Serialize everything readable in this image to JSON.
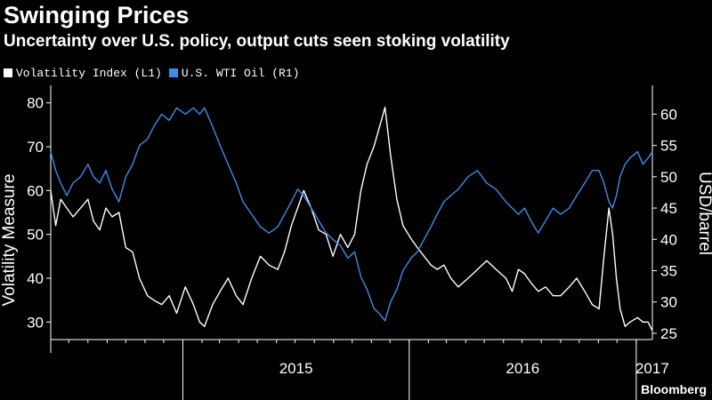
{
  "header": {
    "title": "Swinging Prices",
    "subtitle": "Uncertainty over U.S. policy, output cuts seen stoking volatility"
  },
  "credit": "Bloomberg",
  "chart_data": {
    "type": "line",
    "title": "Swinging Prices",
    "subtitle": "Uncertainty over U.S. policy, output cuts seen stoking volatility",
    "ylabel_left": "Volatility Measure",
    "ylabel_right": "USD/barrel",
    "ylim_left": [
      26,
      84
    ],
    "ylim_right": [
      24,
      64.6
    ],
    "yticks_left": [
      30,
      40,
      50,
      60,
      70,
      80
    ],
    "yticks_right": [
      25,
      30,
      35,
      40,
      45,
      50,
      55,
      60
    ],
    "x_domain": [
      "2014-06-02",
      "2017-01-27"
    ],
    "x_ticks": [
      {
        "label": "2015",
        "date": "2015-01-01"
      },
      {
        "label": "2016",
        "date": "2016-01-01"
      },
      {
        "label": "2017",
        "date": "2017-01-01"
      }
    ],
    "grid": false,
    "legend_position": "top-left",
    "colors": {
      "background": "#000000",
      "vol": "#ffffff",
      "oil": "#3b8ee8",
      "axis": "#ffffff"
    },
    "series": [
      {
        "name": "Volatility Index (L1)",
        "axis": "left",
        "color": "#ffffff",
        "data": [
          [
            "2014-06-02",
            60
          ],
          [
            "2014-06-10",
            52
          ],
          [
            "2014-06-18",
            58
          ],
          [
            "2014-06-28",
            56
          ],
          [
            "2014-07-08",
            54
          ],
          [
            "2014-07-20",
            56
          ],
          [
            "2014-08-01",
            58
          ],
          [
            "2014-08-10",
            53
          ],
          [
            "2014-08-20",
            51
          ],
          [
            "2014-08-30",
            56
          ],
          [
            "2014-09-09",
            54
          ],
          [
            "2014-09-20",
            55
          ],
          [
            "2014-10-01",
            47
          ],
          [
            "2014-10-12",
            46
          ],
          [
            "2014-10-23",
            40
          ],
          [
            "2014-11-05",
            36
          ],
          [
            "2014-11-15",
            35
          ],
          [
            "2014-11-28",
            34
          ],
          [
            "2014-12-10",
            36
          ],
          [
            "2014-12-22",
            32
          ],
          [
            "2015-01-05",
            38
          ],
          [
            "2015-01-18",
            34
          ],
          [
            "2015-01-28",
            30
          ],
          [
            "2015-02-05",
            29
          ],
          [
            "2015-02-18",
            34
          ],
          [
            "2015-03-02",
            37
          ],
          [
            "2015-03-15",
            40
          ],
          [
            "2015-03-28",
            36
          ],
          [
            "2015-04-08",
            34
          ],
          [
            "2015-04-22",
            40
          ],
          [
            "2015-05-06",
            45
          ],
          [
            "2015-05-20",
            43
          ],
          [
            "2015-06-03",
            42
          ],
          [
            "2015-06-14",
            46
          ],
          [
            "2015-06-25",
            52
          ],
          [
            "2015-07-05",
            56
          ],
          [
            "2015-07-15",
            60
          ],
          [
            "2015-07-27",
            56
          ],
          [
            "2015-08-08",
            51
          ],
          [
            "2015-08-20",
            50
          ],
          [
            "2015-08-31",
            45
          ],
          [
            "2015-09-12",
            50
          ],
          [
            "2015-09-24",
            47
          ],
          [
            "2015-10-05",
            50
          ],
          [
            "2015-10-15",
            60
          ],
          [
            "2015-10-25",
            66
          ],
          [
            "2015-11-05",
            70
          ],
          [
            "2015-11-15",
            75
          ],
          [
            "2015-11-23",
            79
          ],
          [
            "2015-12-02",
            68
          ],
          [
            "2015-12-12",
            58
          ],
          [
            "2015-12-22",
            52
          ],
          [
            "2016-01-04",
            49
          ],
          [
            "2016-01-14",
            47
          ],
          [
            "2016-01-25",
            45
          ],
          [
            "2016-02-05",
            43
          ],
          [
            "2016-02-15",
            42
          ],
          [
            "2016-02-26",
            43
          ],
          [
            "2016-03-08",
            40
          ],
          [
            "2016-03-20",
            38
          ],
          [
            "2016-04-05",
            40
          ],
          [
            "2016-04-20",
            42
          ],
          [
            "2016-05-05",
            44
          ],
          [
            "2016-05-20",
            42
          ],
          [
            "2016-06-05",
            40
          ],
          [
            "2016-06-15",
            37
          ],
          [
            "2016-06-25",
            42
          ],
          [
            "2016-07-05",
            41
          ],
          [
            "2016-07-15",
            39
          ],
          [
            "2016-07-27",
            37
          ],
          [
            "2016-08-08",
            38
          ],
          [
            "2016-08-20",
            36
          ],
          [
            "2016-09-01",
            36
          ],
          [
            "2016-09-15",
            38
          ],
          [
            "2016-09-27",
            40
          ],
          [
            "2016-10-10",
            37
          ],
          [
            "2016-10-22",
            34
          ],
          [
            "2016-11-02",
            33
          ],
          [
            "2016-11-10",
            45
          ],
          [
            "2016-11-18",
            56
          ],
          [
            "2016-11-24",
            50
          ],
          [
            "2016-11-30",
            40
          ],
          [
            "2016-12-06",
            33
          ],
          [
            "2016-12-14",
            29
          ],
          [
            "2016-12-22",
            30
          ],
          [
            "2017-01-03",
            31
          ],
          [
            "2017-01-12",
            30
          ],
          [
            "2017-01-20",
            30
          ],
          [
            "2017-01-27",
            28
          ]
        ]
      },
      {
        "name": "U.S. WTI Oil (R1)",
        "axis": "right",
        "color": "#3b8ee8",
        "data": [
          [
            "2014-06-02",
            54
          ],
          [
            "2014-06-10",
            51
          ],
          [
            "2014-06-18",
            49
          ],
          [
            "2014-06-28",
            47
          ],
          [
            "2014-07-08",
            49
          ],
          [
            "2014-07-20",
            50
          ],
          [
            "2014-08-01",
            52
          ],
          [
            "2014-08-10",
            50
          ],
          [
            "2014-08-20",
            49
          ],
          [
            "2014-08-30",
            51
          ],
          [
            "2014-09-09",
            48
          ],
          [
            "2014-09-20",
            46
          ],
          [
            "2014-10-01",
            50
          ],
          [
            "2014-10-12",
            52
          ],
          [
            "2014-10-23",
            55
          ],
          [
            "2014-11-05",
            56
          ],
          [
            "2014-11-15",
            58
          ],
          [
            "2014-11-28",
            60
          ],
          [
            "2014-12-10",
            59
          ],
          [
            "2014-12-22",
            61
          ],
          [
            "2015-01-05",
            60
          ],
          [
            "2015-01-18",
            61
          ],
          [
            "2015-01-28",
            60
          ],
          [
            "2015-02-05",
            61
          ],
          [
            "2015-02-18",
            58
          ],
          [
            "2015-03-02",
            55
          ],
          [
            "2015-03-15",
            52
          ],
          [
            "2015-03-28",
            49
          ],
          [
            "2015-04-08",
            46
          ],
          [
            "2015-04-22",
            44
          ],
          [
            "2015-05-06",
            42
          ],
          [
            "2015-05-20",
            41
          ],
          [
            "2015-06-03",
            42
          ],
          [
            "2015-06-14",
            44
          ],
          [
            "2015-06-25",
            46
          ],
          [
            "2015-07-05",
            48
          ],
          [
            "2015-07-15",
            47
          ],
          [
            "2015-07-27",
            45
          ],
          [
            "2015-08-08",
            43
          ],
          [
            "2015-08-20",
            41
          ],
          [
            "2015-08-31",
            40
          ],
          [
            "2015-09-12",
            39
          ],
          [
            "2015-09-24",
            37
          ],
          [
            "2015-10-05",
            38
          ],
          [
            "2015-10-15",
            34
          ],
          [
            "2015-10-25",
            32
          ],
          [
            "2015-11-05",
            29
          ],
          [
            "2015-11-15",
            28
          ],
          [
            "2015-11-23",
            27
          ],
          [
            "2015-12-02",
            30
          ],
          [
            "2015-12-12",
            32
          ],
          [
            "2015-12-22",
            35
          ],
          [
            "2016-01-04",
            37
          ],
          [
            "2016-01-14",
            38
          ],
          [
            "2016-01-25",
            40
          ],
          [
            "2016-02-05",
            42
          ],
          [
            "2016-02-15",
            44
          ],
          [
            "2016-02-26",
            46
          ],
          [
            "2016-03-08",
            47
          ],
          [
            "2016-03-20",
            48
          ],
          [
            "2016-04-05",
            50
          ],
          [
            "2016-04-20",
            51
          ],
          [
            "2016-05-05",
            49
          ],
          [
            "2016-05-20",
            48
          ],
          [
            "2016-06-05",
            46
          ],
          [
            "2016-06-15",
            45
          ],
          [
            "2016-06-25",
            44
          ],
          [
            "2016-07-05",
            45
          ],
          [
            "2016-07-15",
            43
          ],
          [
            "2016-07-27",
            41
          ],
          [
            "2016-08-08",
            43
          ],
          [
            "2016-08-20",
            45
          ],
          [
            "2016-09-01",
            44
          ],
          [
            "2016-09-15",
            45
          ],
          [
            "2016-09-27",
            47
          ],
          [
            "2016-10-10",
            49
          ],
          [
            "2016-10-22",
            51
          ],
          [
            "2016-11-02",
            51
          ],
          [
            "2016-11-10",
            49
          ],
          [
            "2016-11-18",
            46
          ],
          [
            "2016-11-24",
            45
          ],
          [
            "2016-11-30",
            47
          ],
          [
            "2016-12-06",
            50
          ],
          [
            "2016-12-14",
            52
          ],
          [
            "2016-12-22",
            53
          ],
          [
            "2017-01-03",
            54
          ],
          [
            "2017-01-12",
            52
          ],
          [
            "2017-01-20",
            53
          ],
          [
            "2017-01-27",
            54
          ]
        ]
      }
    ]
  }
}
